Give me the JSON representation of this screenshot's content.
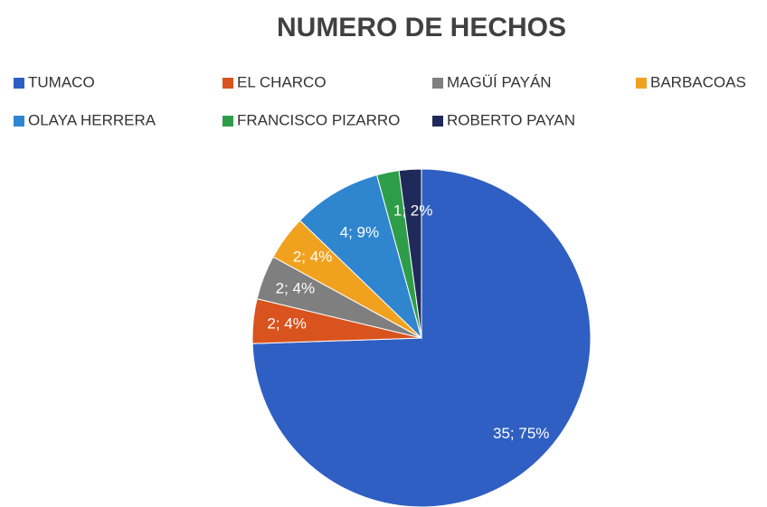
{
  "chart_data": {
    "type": "pie",
    "title": "NUMERO DE HECHOS",
    "categories": [
      "TUMACO",
      "EL CHARCO",
      "MAGÜÍ PAYÁN",
      "BARBACOAS",
      "OLAYA HERRERA",
      "FRANCISCO PIZARRO",
      "ROBERTO PAYAN"
    ],
    "values": [
      35,
      2,
      2,
      2,
      4,
      1,
      1
    ],
    "value_labels": [
      "35; 75%",
      "2; 4%",
      "2; 4%",
      "2; 4%",
      "4; 9%",
      "1; 2%",
      "1; 2%"
    ],
    "colors": [
      "#2f5fc2",
      "#d9531e",
      "#7f7f7f",
      "#f0a21f",
      "#2f86cf",
      "#2e9d4a",
      "#1f2a5a"
    ]
  }
}
